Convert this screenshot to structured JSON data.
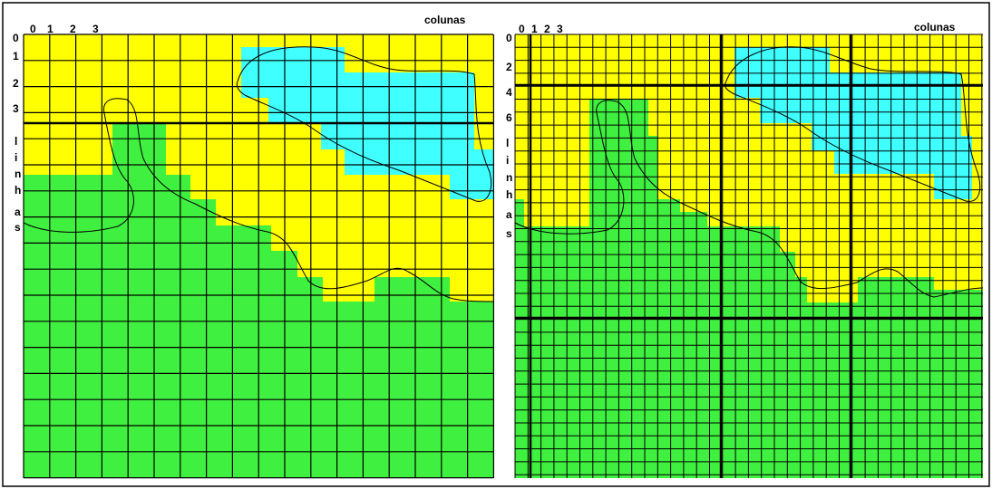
{
  "panels": [
    {
      "id": "coarse",
      "columns_label": "colunas",
      "column_numbers": [
        "0",
        "1",
        "2",
        "3"
      ],
      "row_numbers": [
        "0",
        "1",
        "2",
        "3"
      ],
      "row_axis_letters": [
        "l",
        "i",
        "n",
        "h",
        "a",
        "s"
      ]
    },
    {
      "id": "fine",
      "columns_label": "colunas",
      "column_numbers": [
        "0",
        "1",
        "2",
        "3"
      ],
      "row_numbers": [
        "0",
        "2",
        "4",
        "6"
      ],
      "row_axis_letters": [
        "l",
        "i",
        "n",
        "h",
        "a",
        "s"
      ]
    }
  ],
  "colors": {
    "land_green": "#40f040",
    "sand_yellow": "#ffff00",
    "water_cyan": "#40ffff",
    "grid_line": "#000000"
  }
}
